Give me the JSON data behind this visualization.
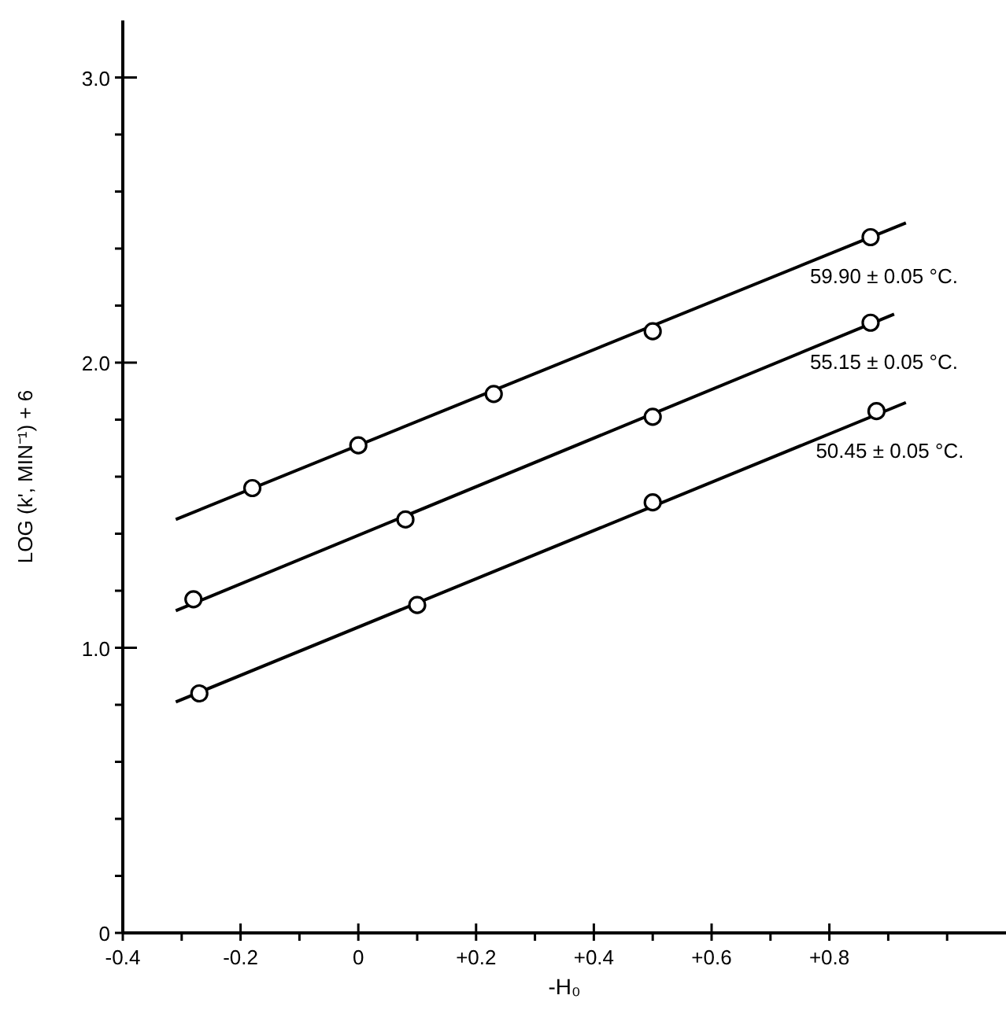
{
  "chart_data": {
    "type": "scatter",
    "xlabel": "-H₀",
    "ylabel": "LOG  (k', MIN⁻¹) + 6",
    "xlim": [
      -0.4,
      1.1
    ],
    "ylim": [
      0,
      3.2
    ],
    "xticks": [
      -0.4,
      {
        "value": -0.3,
        "label": null
      },
      -0.2,
      {
        "value": -0.1,
        "label": null
      },
      0,
      {
        "value": 0.1,
        "label": null
      },
      {
        "value": 0.2,
        "label": "+0.2"
      },
      {
        "value": 0.3,
        "label": null
      },
      {
        "value": 0.4,
        "label": "+0.4"
      },
      {
        "value": 0.5,
        "label": null
      },
      {
        "value": 0.6,
        "label": "+0.6"
      },
      {
        "value": 0.7,
        "label": null
      },
      {
        "value": 0.8,
        "label": "+0.8"
      },
      {
        "value": 0.9,
        "label": null
      },
      {
        "value": 1.0,
        "label": null
      }
    ],
    "yticks": [
      0,
      {
        "value": 0.2,
        "label": null
      },
      {
        "value": 0.4,
        "label": null
      },
      {
        "value": 0.6,
        "label": null
      },
      {
        "value": 0.8,
        "label": null
      },
      {
        "value": 1.0,
        "label": "1.0"
      },
      {
        "value": 1.2,
        "label": null
      },
      {
        "value": 1.4,
        "label": null
      },
      {
        "value": 1.6,
        "label": null
      },
      {
        "value": 1.8,
        "label": null
      },
      {
        "value": 2.0,
        "label": "2.0"
      },
      {
        "value": 2.2,
        "label": null
      },
      {
        "value": 2.4,
        "label": null
      },
      {
        "value": 2.6,
        "label": null
      },
      {
        "value": 2.8,
        "label": null
      },
      {
        "value": 3.0,
        "label": "3.0"
      }
    ],
    "marker": "circle",
    "line_style": "solid",
    "grid": false,
    "series": [
      {
        "type": "scatter",
        "name": "59.90 ± 0.05 °C.",
        "color": "#000000",
        "x": [
          -0.18,
          0.0,
          0.23,
          0.5,
          0.87
        ],
        "values": [
          1.56,
          1.71,
          1.89,
          2.11,
          2.44
        ]
      },
      {
        "type": "scatter",
        "name": "55.15 ± 0.05 °C.",
        "color": "#000000",
        "x": [
          -0.28,
          0.08,
          0.5,
          0.87
        ],
        "values": [
          1.17,
          1.45,
          1.81,
          2.14
        ]
      },
      {
        "type": "scatter",
        "name": "50.45 ± 0.05 °C.",
        "color": "#000000",
        "x": [
          -0.27,
          0.1,
          0.5,
          0.88
        ],
        "values": [
          0.84,
          1.15,
          1.51,
          1.83
        ]
      },
      {
        "type": "line",
        "color": "#000000",
        "marker": "none",
        "x": [
          -0.31,
          0.93
        ],
        "values": [
          1.45,
          2.49
        ]
      },
      {
        "type": "line",
        "color": "#000000",
        "marker": "none",
        "x": [
          -0.31,
          0.91
        ],
        "values": [
          1.13,
          2.17
        ]
      },
      {
        "type": "line",
        "color": "#000000",
        "marker": "none",
        "x": [
          -0.31,
          0.93
        ],
        "values": [
          0.81,
          1.86
        ]
      }
    ]
  }
}
